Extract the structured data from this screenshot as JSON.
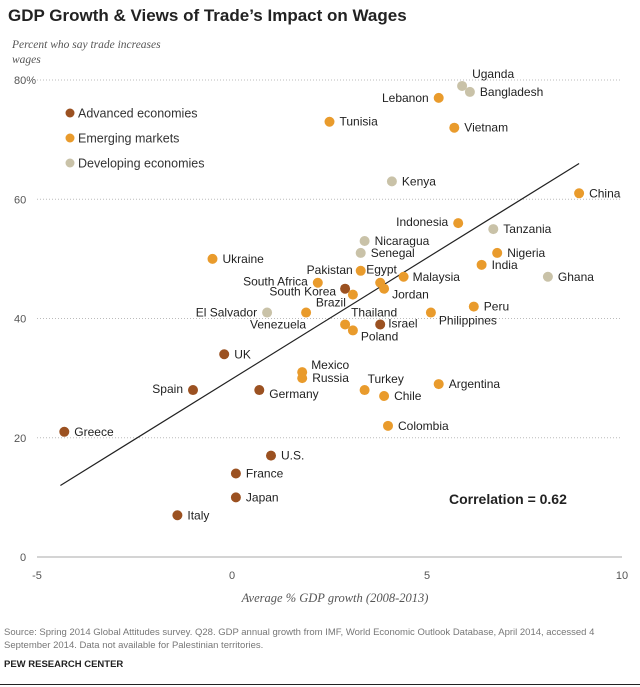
{
  "title": "GDP Growth & Views of Trade’s Impact on Wages",
  "source": "Source: Spring 2014 Global Attitudes survey. Q28. GDP annual growth from IMF, World Economic Outlook Database, April 2014, accessed 4 September 2014. Data not available for Palestinian territories.",
  "org": "PEW RESEARCH CENTER",
  "chart_data": {
    "type": "scatter",
    "title": "GDP Growth & Views of Trade’s Impact on Wages",
    "xlabel": "Average % GDP growth (2008-2013)",
    "ylabel": "Percent who say trade increases wages",
    "xlim": [
      -5,
      10
    ],
    "ylim": [
      0,
      80
    ],
    "x_ticks": [
      "-5",
      "0",
      "5",
      "10"
    ],
    "y_ticks": [
      "0",
      "20",
      "40",
      "60",
      "80%"
    ],
    "grid": "horizontal dotted",
    "legend_position": "top-left",
    "annotation": "Correlation = 0.62",
    "trendline": {
      "x": [
        -4.4,
        8.9
      ],
      "y": [
        12,
        66
      ]
    },
    "series": [
      {
        "name": "Advanced economies",
        "color": "#9b5121",
        "points": [
          {
            "label": "South Korea",
            "x": 2.9,
            "y": 45
          },
          {
            "label": "Israel",
            "x": 3.8,
            "y": 39
          },
          {
            "label": "UK",
            "x": -0.2,
            "y": 34
          },
          {
            "label": "Spain",
            "x": -1.0,
            "y": 28
          },
          {
            "label": "Germany",
            "x": 0.7,
            "y": 28
          },
          {
            "label": "Greece",
            "x": -4.3,
            "y": 21
          },
          {
            "label": "U.S.",
            "x": 1.0,
            "y": 17
          },
          {
            "label": "France",
            "x": 0.1,
            "y": 14
          },
          {
            "label": "Japan",
            "x": 0.1,
            "y": 10
          },
          {
            "label": "Italy",
            "x": -1.4,
            "y": 7
          }
        ]
      },
      {
        "name": "Emerging markets",
        "color": "#e99b2c",
        "points": [
          {
            "label": "Lebanon",
            "x": 5.3,
            "y": 77
          },
          {
            "label": "Tunisia",
            "x": 2.5,
            "y": 73
          },
          {
            "label": "Vietnam",
            "x": 5.7,
            "y": 72
          },
          {
            "label": "China",
            "x": 8.9,
            "y": 61
          },
          {
            "label": "Indonesia",
            "x": 5.8,
            "y": 56
          },
          {
            "label": "Ukraine",
            "x": -0.5,
            "y": 50
          },
          {
            "label": "Nigeria",
            "x": 6.8,
            "y": 51
          },
          {
            "label": "India",
            "x": 6.4,
            "y": 49
          },
          {
            "label": "Pakistan",
            "x": 3.3,
            "y": 48
          },
          {
            "label": "Egypt",
            "x": 3.8,
            "y": 46
          },
          {
            "label": "Malaysia",
            "x": 4.4,
            "y": 47
          },
          {
            "label": "Jordan",
            "x": 3.9,
            "y": 45
          },
          {
            "label": "South Africa",
            "x": 2.2,
            "y": 46
          },
          {
            "label": "Brazil",
            "x": 3.1,
            "y": 44
          },
          {
            "label": "Venezuela",
            "x": 1.9,
            "y": 41
          },
          {
            "label": "Thailand",
            "x": 2.9,
            "y": 39
          },
          {
            "label": "Poland",
            "x": 3.1,
            "y": 38
          },
          {
            "label": "Philippines",
            "x": 5.1,
            "y": 41
          },
          {
            "label": "Peru",
            "x": 6.2,
            "y": 42
          },
          {
            "label": "Mexico",
            "x": 1.8,
            "y": 31
          },
          {
            "label": "Russia",
            "x": 1.8,
            "y": 30
          },
          {
            "label": "Turkey",
            "x": 3.4,
            "y": 28
          },
          {
            "label": "Chile",
            "x": 3.9,
            "y": 27
          },
          {
            "label": "Argentina",
            "x": 5.3,
            "y": 29
          },
          {
            "label": "Colombia",
            "x": 4.0,
            "y": 22
          }
        ]
      },
      {
        "name": "Developing economies",
        "color": "#c9c2a8",
        "points": [
          {
            "label": "Uganda",
            "x": 5.9,
            "y": 79
          },
          {
            "label": "Bangladesh",
            "x": 6.1,
            "y": 78
          },
          {
            "label": "Kenya",
            "x": 4.1,
            "y": 63
          },
          {
            "label": "Tanzania",
            "x": 6.7,
            "y": 55
          },
          {
            "label": "Nicaragua",
            "x": 3.4,
            "y": 53
          },
          {
            "label": "Senegal",
            "x": 3.3,
            "y": 51
          },
          {
            "label": "Ghana",
            "x": 8.1,
            "y": 47
          },
          {
            "label": "El Salvador",
            "x": 0.9,
            "y": 41
          }
        ]
      }
    ]
  }
}
